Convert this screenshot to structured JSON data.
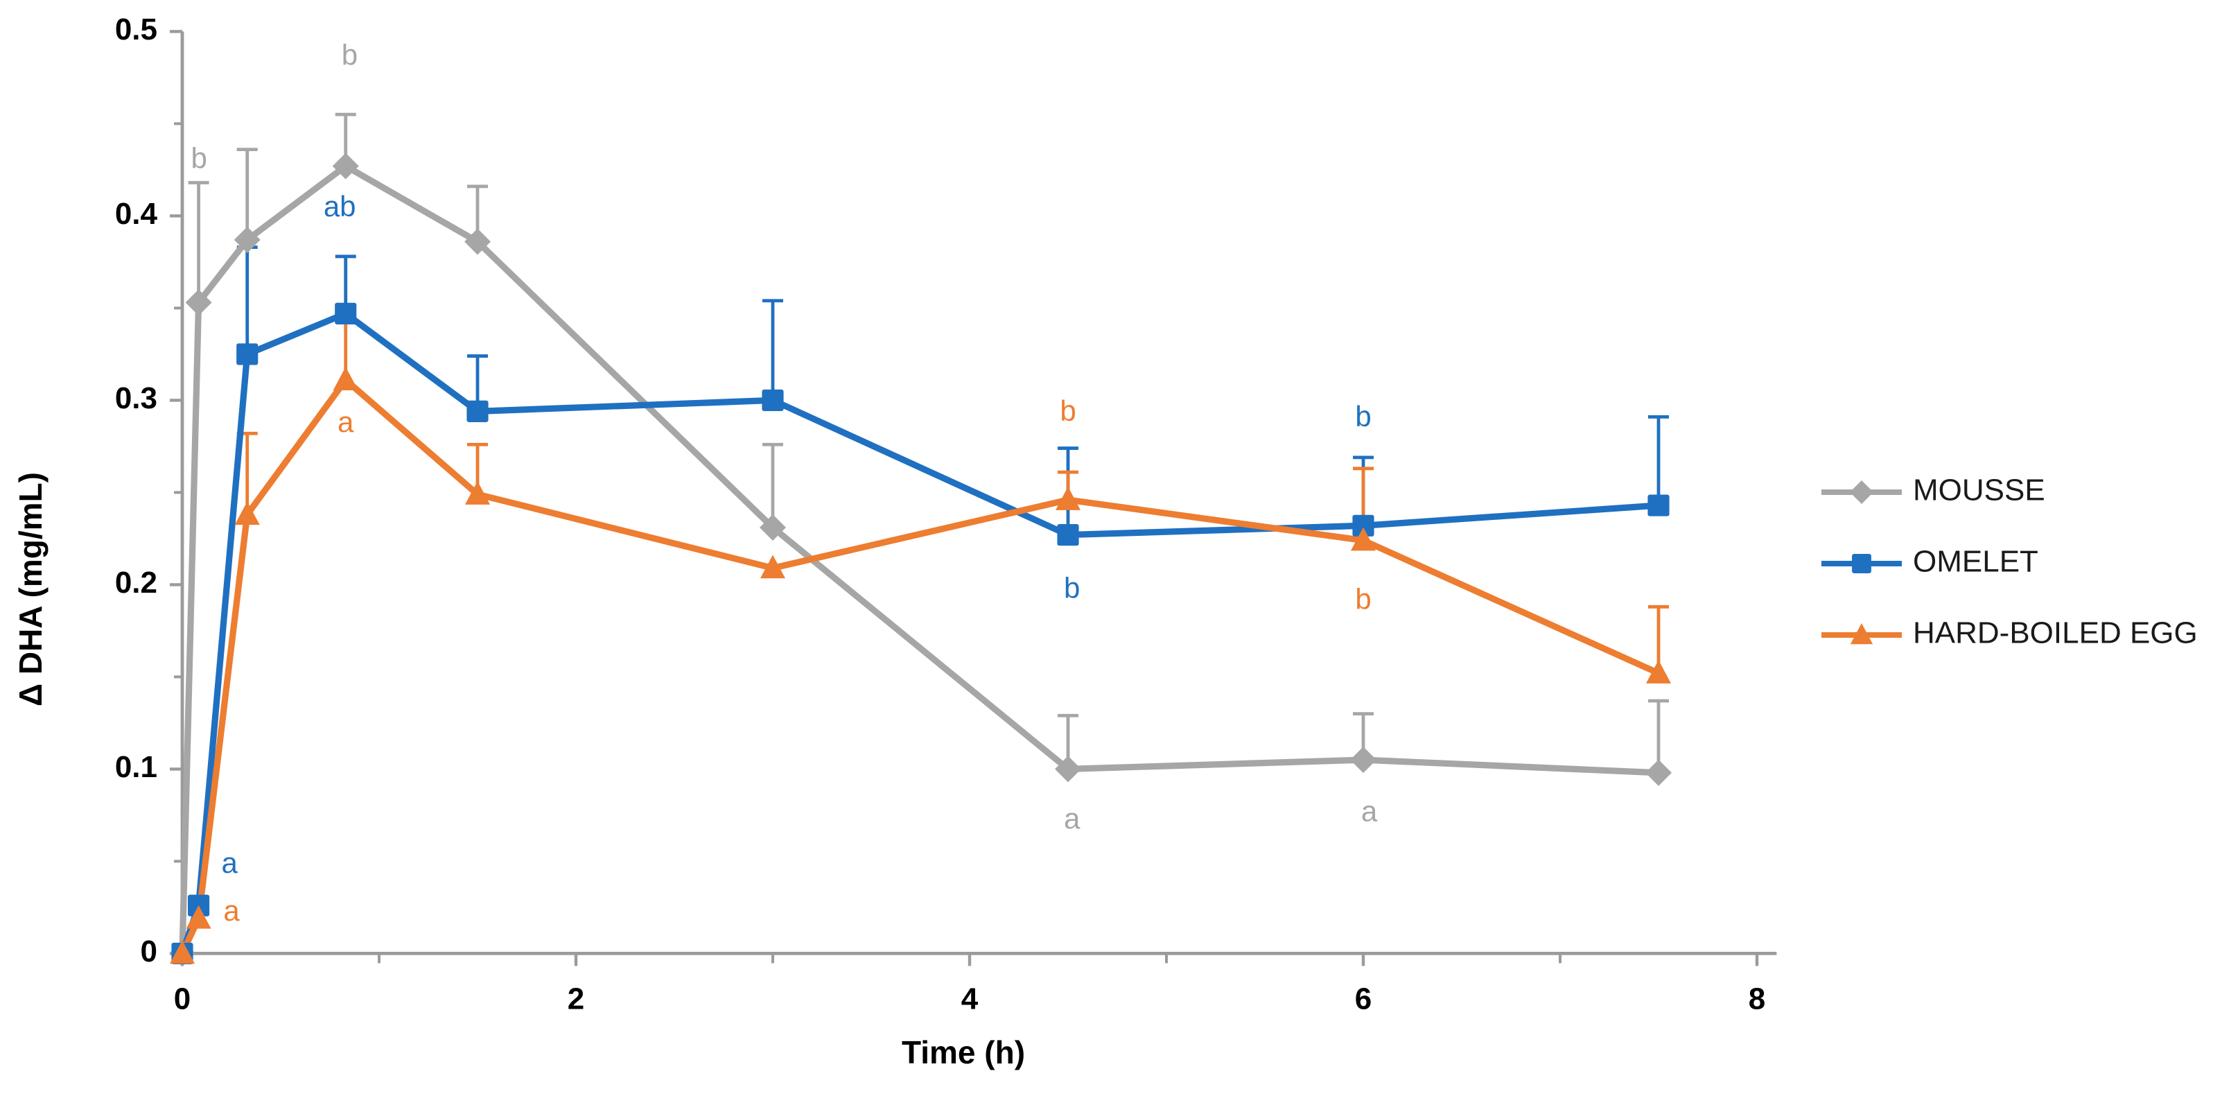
{
  "chart_data": {
    "type": "line",
    "title": "",
    "xlabel": "Time (h)",
    "ylabel": "Δ DHA (mg/mL)",
    "xlim": [
      0,
      8.1
    ],
    "ylim": [
      0,
      0.5
    ],
    "x_major_ticks": [
      0,
      2,
      4,
      6,
      8
    ],
    "x_minor_ticks": [
      1,
      3,
      5,
      7
    ],
    "y_major_ticks": [
      0,
      0.1,
      0.2,
      0.3,
      0.4,
      0.5
    ],
    "y_minor_ticks": [
      0.05,
      0.15,
      0.25,
      0.35,
      0.45
    ],
    "grid": false,
    "legend_position": "right-middle",
    "axis_color": "#9B9B9B",
    "text_color": "#000000",
    "x": [
      0,
      0.083,
      0.33,
      0.83,
      1.5,
      3,
      4.5,
      6,
      7.5
    ],
    "series": [
      {
        "name": "MOUSSE",
        "color": "#A6A6A6",
        "marker": "diamond",
        "values": [
          0,
          0.353,
          0.387,
          0.427,
          0.386,
          0.231,
          0.1,
          0.105,
          0.098
        ],
        "err_up": [
          0,
          0.065,
          0.049,
          0.028,
          0.03,
          0.045,
          0.029,
          0.025,
          0.039
        ]
      },
      {
        "name": "OMELET",
        "color": "#1F70C1",
        "marker": "square",
        "values": [
          0,
          0.026,
          0.325,
          0.347,
          0.294,
          0.3,
          0.227,
          0.232,
          0.243
        ],
        "err_up": [
          0,
          0,
          0.058,
          0.031,
          0.03,
          0.054,
          0.047,
          0.037,
          0.048
        ]
      },
      {
        "name": "HARD-BOILED EGG",
        "color": "#ED7D31",
        "marker": "triangle",
        "values": [
          0,
          0.019,
          0.238,
          0.311,
          0.249,
          0.209,
          0.246,
          0.224,
          0.152
        ],
        "err_up": [
          0,
          0,
          0.044,
          0.033,
          0.027,
          0,
          0.015,
          0.039,
          0.036
        ]
      }
    ],
    "annotations": [
      {
        "text": "b",
        "series": "MOUSSE",
        "t": 0.085,
        "v": 0.43
      },
      {
        "text": "a",
        "series": "OMELET",
        "t": 0.24,
        "v": 0.048
      },
      {
        "text": "a",
        "series": "HARD-BOILED EGG",
        "t": 0.25,
        "v": 0.022
      },
      {
        "text": "b",
        "series": "MOUSSE",
        "t": 0.85,
        "v": 0.486
      },
      {
        "text": "ab",
        "series": "OMELET",
        "t": 0.8,
        "v": 0.404
      },
      {
        "text": "a",
        "series": "HARD-BOILED EGG",
        "t": 0.83,
        "v": 0.287
      },
      {
        "text": "b",
        "series": "HARD-BOILED EGG",
        "t": 4.5,
        "v": 0.293
      },
      {
        "text": "b",
        "series": "OMELET",
        "t": 4.52,
        "v": 0.197
      },
      {
        "text": "a",
        "series": "MOUSSE",
        "t": 4.52,
        "v": 0.072
      },
      {
        "text": "b",
        "series": "OMELET",
        "t": 6.0,
        "v": 0.29
      },
      {
        "text": "b",
        "series": "HARD-BOILED EGG",
        "t": 6.0,
        "v": 0.191
      },
      {
        "text": "a",
        "series": "MOUSSE",
        "t": 6.03,
        "v": 0.076
      }
    ]
  }
}
